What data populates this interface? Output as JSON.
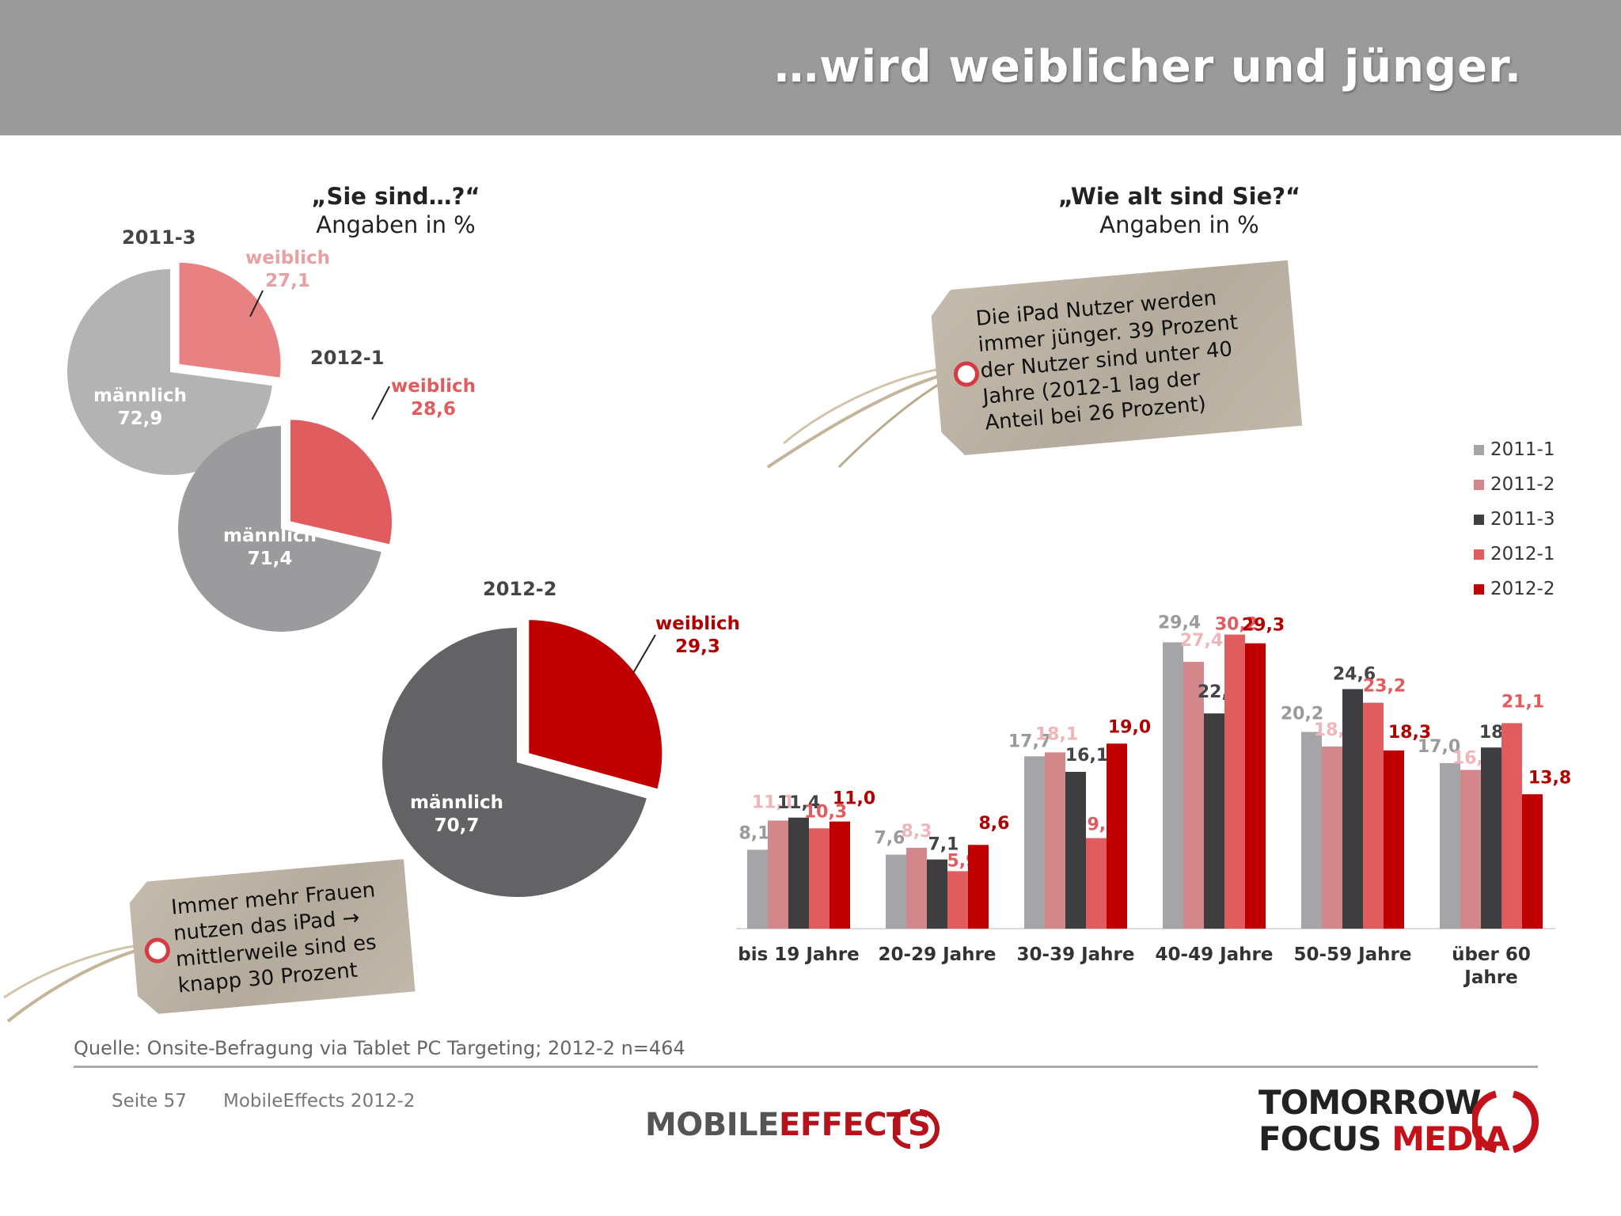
{
  "header": {
    "title": "…wird weiblicher und jünger."
  },
  "left": {
    "question": "„Sie sind…?“",
    "subtitle": "Angaben in %",
    "pies": [
      {
        "year": "2011-3",
        "male_label": "männlich",
        "male_value": "72,9",
        "female_label": "weiblich",
        "female_value": "27,1",
        "female_pct": 27.1,
        "male_color": "#b3b3b3",
        "female_color": "#e88181",
        "label_color": "#e8a0a3"
      },
      {
        "year": "2012-1",
        "male_label": "männlich",
        "male_value": "71,4",
        "female_label": "weiblich",
        "female_value": "28,6",
        "female_pct": 28.6,
        "male_color": "#9b9b9d",
        "female_color": "#e15c5f",
        "label_color": "#e15c5f"
      },
      {
        "year": "2012-2",
        "male_label": "männlich",
        "male_value": "70,7",
        "female_label": "weiblich",
        "female_value": "29,3",
        "female_pct": 29.3,
        "male_color": "#636265",
        "female_color": "#c00000",
        "label_color": "#b00000"
      }
    ]
  },
  "right": {
    "question": "„Wie alt sind Sie?“",
    "subtitle": "Angaben in %"
  },
  "tags": {
    "top": "Die iPad Nutzer werden immer jünger. 39 Prozent der Nutzer sind unter 40 Jahre (2012-1 lag  der Anteil bei 26 Prozent)",
    "top_lines": [
      "Die iPad Nutzer werden",
      "immer jünger. 39 Prozent",
      "der Nutzer sind unter 40",
      "Jahre (2012-1 lag  der",
      "Anteil bei 26 Prozent)"
    ],
    "bottom_lines": [
      "Immer mehr Frauen",
      "nutzen das iPad →",
      "mittlerweile sind es",
      "knapp 30 Prozent"
    ]
  },
  "chart_data": [
    {
      "type": "pie",
      "title": "„Sie sind…?“",
      "subtitle": "Angaben in %",
      "pies": [
        {
          "name": "2011-3",
          "slices": [
            {
              "label": "männlich",
              "value": 72.9
            },
            {
              "label": "weiblich",
              "value": 27.1
            }
          ]
        },
        {
          "name": "2012-1",
          "slices": [
            {
              "label": "männlich",
              "value": 71.4
            },
            {
              "label": "weiblich",
              "value": 28.6
            }
          ]
        },
        {
          "name": "2012-2",
          "slices": [
            {
              "label": "männlich",
              "value": 70.7
            },
            {
              "label": "weiblich",
              "value": 29.3
            }
          ]
        }
      ]
    },
    {
      "type": "bar",
      "title": "„Wie alt sind Sie?“",
      "subtitle": "Angaben in %",
      "categories": [
        "bis 19 Jahre",
        "20-29 Jahre",
        "30-39 Jahre",
        "40-49 Jahre",
        "50-59 Jahre",
        "über 60 Jahre"
      ],
      "category_lines": [
        [
          "bis 19 Jahre"
        ],
        [
          "20-29 Jahre"
        ],
        [
          "30-39 Jahre"
        ],
        [
          "40-49 Jahre"
        ],
        [
          "50-59 Jahre"
        ],
        [
          "über 60",
          "Jahre"
        ]
      ],
      "series": [
        {
          "name": "2011-1",
          "color": "#a5a5a7",
          "label_color": "#9a9a9c",
          "values": [
            8.1,
            7.6,
            17.7,
            29.4,
            20.2,
            17.0
          ],
          "labels": [
            "8,1",
            "7,6",
            "17,7",
            "29,4",
            "20,2",
            "17,0"
          ]
        },
        {
          "name": "2011-2",
          "color": "#d4878a",
          "label_color": "#f0b5b8",
          "values": [
            11.1,
            8.3,
            18.1,
            27.4,
            18.7,
            16.3
          ],
          "labels": [
            "11,1",
            "8,3",
            "18,1",
            "27,4",
            "18,7",
            "16,3"
          ]
        },
        {
          "name": "2011-3",
          "color": "#3e3e40",
          "label_color": "#444446",
          "values": [
            11.4,
            7.1,
            16.1,
            22.1,
            24.6,
            18.6
          ],
          "labels": [
            "11,4",
            "7,1",
            "16,1",
            "22,1",
            "24,6",
            "18,6"
          ]
        },
        {
          "name": "2012-1",
          "color": "#e15c5f",
          "label_color": "#e15c5f",
          "values": [
            10.3,
            5.9,
            9.3,
            30.2,
            23.2,
            21.1
          ],
          "labels": [
            "10,3",
            "5,9",
            "9,3",
            "30,2",
            "23,2",
            "21,1"
          ]
        },
        {
          "name": "2012-2",
          "color": "#c00000",
          "label_color": "#b00000",
          "values": [
            11.0,
            8.6,
            19.0,
            29.3,
            18.3,
            13.8
          ],
          "labels": [
            "11,0",
            "8,6",
            "19,0",
            "29,3",
            "18,3",
            "13,8"
          ]
        }
      ],
      "legend_placement": "right",
      "grid": false
    }
  ],
  "footer": {
    "source": "Quelle: Onsite-Befragung via Tablet PC Targeting; 2012-2 n=464",
    "page": "Seite 57",
    "doc": "MobileEffects 2012-2",
    "logo_left_a": "MOBILE",
    "logo_left_b": "EFFECTS",
    "logo_right_1": "TOMORROW",
    "logo_right_2a": "FOCUS",
    "logo_right_2b": "MEDIA"
  }
}
